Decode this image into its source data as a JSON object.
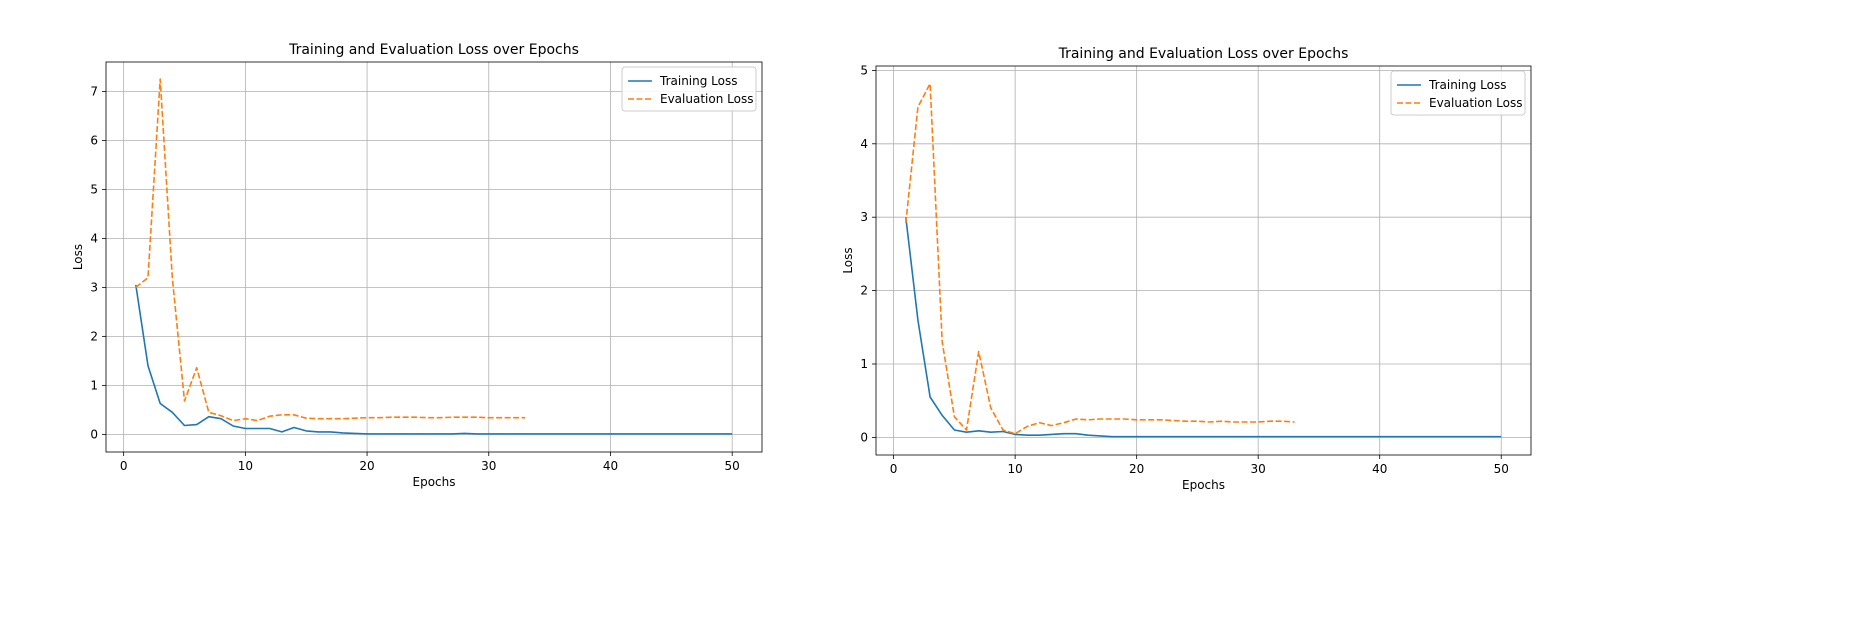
{
  "chart_data": [
    {
      "type": "line",
      "title": "Training and Evaluation Loss over Epochs",
      "xlabel": "Epochs",
      "ylabel": "Loss",
      "xlim": [
        -1.45,
        52.45
      ],
      "ylim": [
        -0.36,
        7.6
      ],
      "xticks": [
        0,
        10,
        20,
        30,
        40,
        50
      ],
      "yticks": [
        0,
        1,
        2,
        3,
        4,
        5,
        6,
        7
      ],
      "grid": true,
      "legend_position": "top-right",
      "series": [
        {
          "name": "Training Loss",
          "color": "#1f77b4",
          "style": "solid",
          "x": [
            1,
            2,
            3,
            4,
            5,
            6,
            7,
            8,
            9,
            10,
            11,
            12,
            13,
            14,
            15,
            16,
            17,
            18,
            19,
            20,
            21,
            22,
            23,
            24,
            25,
            26,
            27,
            28,
            29,
            30,
            31,
            32,
            33,
            34,
            35,
            36,
            37,
            38,
            39,
            40,
            41,
            42,
            43,
            44,
            45,
            46,
            47,
            48,
            49,
            50
          ],
          "y": [
            3.05,
            1.4,
            0.63,
            0.45,
            0.18,
            0.2,
            0.36,
            0.32,
            0.17,
            0.12,
            0.12,
            0.12,
            0.05,
            0.14,
            0.07,
            0.05,
            0.05,
            0.03,
            0.02,
            0.01,
            0.01,
            0.01,
            0.01,
            0.01,
            0.01,
            0.01,
            0.01,
            0.02,
            0.01,
            0.01,
            0.01,
            0.01,
            0.01,
            0.01,
            0.01,
            0.01,
            0.01,
            0.01,
            0.01,
            0.01,
            0.01,
            0.01,
            0.01,
            0.01,
            0.01,
            0.01,
            0.01,
            0.01,
            0.01,
            0.01
          ]
        },
        {
          "name": "Evaluation Loss",
          "color": "#ff7f0e",
          "style": "dashed",
          "x": [
            1,
            2,
            3,
            4,
            5,
            6,
            7,
            8,
            9,
            10,
            11,
            12,
            13,
            14,
            15,
            16,
            17,
            18,
            19,
            20,
            21,
            22,
            23,
            24,
            25,
            26,
            27,
            28,
            29,
            30,
            31,
            32,
            33
          ],
          "y": [
            3.0,
            3.2,
            7.25,
            3.2,
            0.68,
            1.36,
            0.45,
            0.38,
            0.28,
            0.32,
            0.28,
            0.37,
            0.4,
            0.4,
            0.33,
            0.32,
            0.32,
            0.32,
            0.33,
            0.34,
            0.34,
            0.35,
            0.35,
            0.35,
            0.34,
            0.34,
            0.35,
            0.35,
            0.35,
            0.34,
            0.34,
            0.34,
            0.34
          ]
        }
      ]
    },
    {
      "type": "line",
      "title": "Training and Evaluation Loss over Epochs",
      "xlabel": "Epochs",
      "ylabel": "Loss",
      "xlim": [
        -1.45,
        52.45
      ],
      "ylim": [
        -0.24,
        5.06
      ],
      "xticks": [
        0,
        10,
        20,
        30,
        40,
        50
      ],
      "yticks": [
        0,
        1,
        2,
        3,
        4,
        5
      ],
      "grid": true,
      "legend_position": "top-right",
      "series": [
        {
          "name": "Training Loss",
          "color": "#1f77b4",
          "style": "solid",
          "x": [
            1,
            2,
            3,
            4,
            5,
            6,
            7,
            8,
            9,
            10,
            11,
            12,
            13,
            14,
            15,
            16,
            17,
            18,
            19,
            20,
            21,
            22,
            23,
            24,
            25,
            26,
            27,
            28,
            29,
            30,
            31,
            32,
            33,
            34,
            35,
            36,
            37,
            38,
            39,
            40,
            41,
            42,
            43,
            44,
            45,
            46,
            47,
            48,
            49,
            50
          ],
          "y": [
            3.0,
            1.6,
            0.55,
            0.3,
            0.1,
            0.07,
            0.09,
            0.07,
            0.08,
            0.04,
            0.03,
            0.03,
            0.04,
            0.05,
            0.05,
            0.03,
            0.02,
            0.01,
            0.01,
            0.01,
            0.01,
            0.01,
            0.01,
            0.01,
            0.01,
            0.01,
            0.01,
            0.01,
            0.01,
            0.01,
            0.01,
            0.01,
            0.01,
            0.01,
            0.01,
            0.01,
            0.01,
            0.01,
            0.01,
            0.01,
            0.01,
            0.01,
            0.01,
            0.01,
            0.01,
            0.01,
            0.01,
            0.01,
            0.01,
            0.01
          ]
        },
        {
          "name": "Evaluation Loss",
          "color": "#ff7f0e",
          "style": "dashed",
          "x": [
            1,
            2,
            3,
            4,
            5,
            6,
            7,
            8,
            9,
            10,
            11,
            12,
            13,
            14,
            15,
            16,
            17,
            18,
            19,
            20,
            21,
            22,
            23,
            24,
            25,
            26,
            27,
            28,
            29,
            30,
            31,
            32,
            33
          ],
          "y": [
            2.92,
            4.5,
            4.82,
            1.3,
            0.28,
            0.1,
            1.17,
            0.4,
            0.1,
            0.05,
            0.15,
            0.2,
            0.16,
            0.2,
            0.25,
            0.24,
            0.25,
            0.25,
            0.25,
            0.24,
            0.24,
            0.24,
            0.23,
            0.22,
            0.22,
            0.21,
            0.22,
            0.21,
            0.21,
            0.21,
            0.22,
            0.22,
            0.21
          ]
        }
      ]
    }
  ]
}
